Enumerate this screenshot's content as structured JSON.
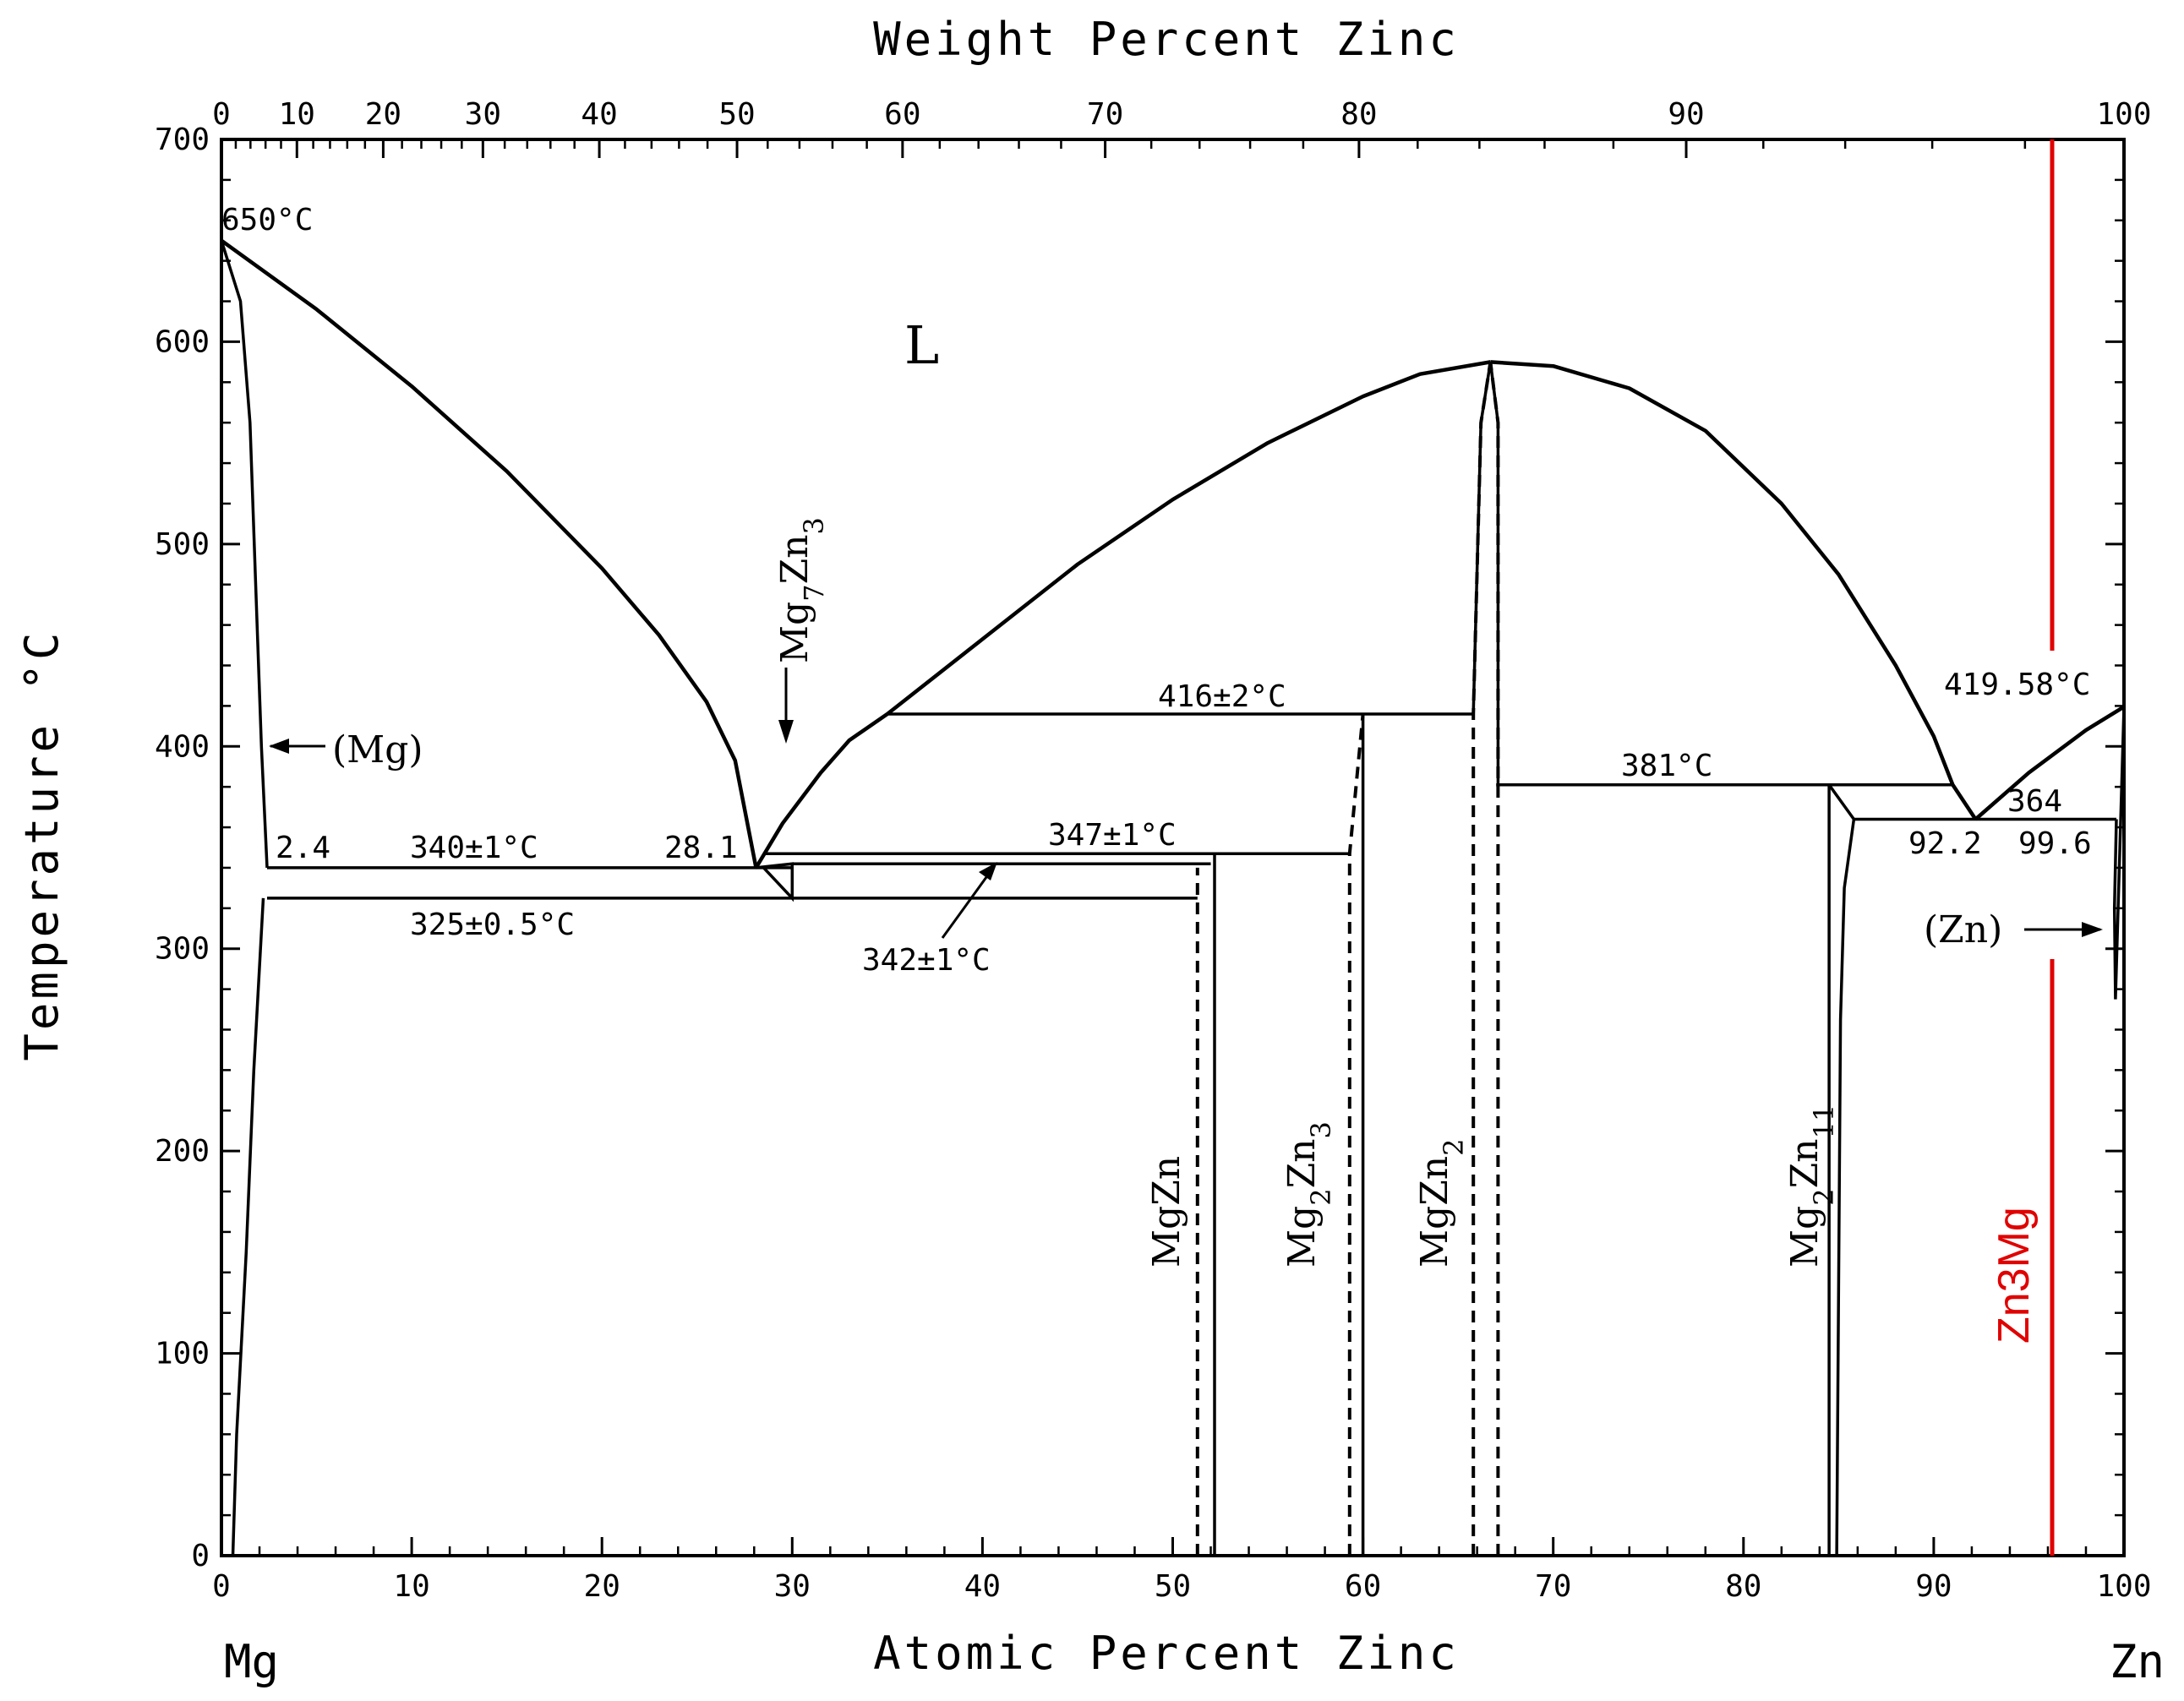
{
  "chart_data": {
    "type": "phase-diagram",
    "title": "",
    "top_axis": {
      "label": "Weight Percent Zinc",
      "ticks": [
        "0",
        "10",
        "20",
        "30",
        "40",
        "50",
        "60",
        "70",
        "80",
        "90",
        "100"
      ]
    },
    "bottom_axis": {
      "label": "Atomic Percent Zinc",
      "ticks": [
        "0",
        "10",
        "20",
        "30",
        "40",
        "50",
        "60",
        "70",
        "80",
        "90",
        "100"
      ],
      "xlim": [
        0,
        100
      ]
    },
    "y_axis": {
      "label": "Temperature °C",
      "ticks": [
        "0",
        "100",
        "200",
        "300",
        "400",
        "500",
        "600",
        "700"
      ],
      "ylim": [
        0,
        700
      ]
    },
    "elements": {
      "left": "Mg",
      "right": "Zn"
    },
    "temperature_labels": [
      {
        "text": "650°C",
        "x": 0,
        "y": 650
      },
      {
        "text": "416±2°C",
        "x": 56,
        "y": 416
      },
      {
        "text": "419.58°C",
        "x": 100,
        "y": 419.58
      },
      {
        "text": "381°C",
        "x": 76,
        "y": 381
      },
      {
        "text": "364",
        "x": 96,
        "y": 364
      },
      {
        "text": "347±1°C",
        "x": 47,
        "y": 347
      },
      {
        "text": "340±1°C",
        "x": 14,
        "y": 340
      },
      {
        "text": "325±0.5°C",
        "x": 14,
        "y": 325
      },
      {
        "text": "342±1°C",
        "x": 38,
        "y": 300
      }
    ],
    "composition_labels": [
      {
        "text": "2.4",
        "x": 2.4,
        "y": 340
      },
      {
        "text": "28.1",
        "x": 28.1,
        "y": 340
      },
      {
        "text": "92.2",
        "x": 92.2,
        "y": 364
      },
      {
        "text": "99.6",
        "x": 99.6,
        "y": 364
      }
    ],
    "phase_labels": {
      "liquid": "L",
      "mg_solution": "(Mg)",
      "zn_solution": "(Zn)",
      "mg7zn3": {
        "base": "Mg",
        "s1": "7",
        "mid": "Zn",
        "s2": "3"
      },
      "mgzn": {
        "base": "MgZn",
        "s1": "",
        "mid": "",
        "s2": ""
      },
      "mg2zn3": {
        "base": "Mg",
        "s1": "2",
        "mid": "Zn",
        "s2": "3"
      },
      "mgzn2": {
        "base": "MgZn",
        "s1": "2",
        "mid": "",
        "s2": ""
      },
      "mg2zn11": {
        "base": "Mg",
        "s1": "2",
        "mid": "Zn",
        "s2": "11"
      }
    },
    "highlight": {
      "label": "Zn3Mg",
      "x": 97,
      "color": "#e00000"
    },
    "lines": {
      "liquidus_mg_side": [
        [
          0,
          650
        ],
        [
          5,
          616
        ],
        [
          10,
          578
        ],
        [
          15,
          536
        ],
        [
          20,
          488
        ],
        [
          23,
          455
        ],
        [
          25.5,
          422
        ],
        [
          27,
          393
        ],
        [
          28.1,
          340
        ]
      ],
      "liquidus_mg7zn3": [
        [
          28.1,
          340
        ],
        [
          29.5,
          362
        ],
        [
          31.5,
          387
        ],
        [
          33,
          403
        ],
        [
          35,
          416
        ]
      ],
      "liquidus_mgzn2_left": [
        [
          35,
          416
        ],
        [
          40,
          453
        ],
        [
          45,
          490
        ],
        [
          50,
          522
        ],
        [
          55,
          550
        ],
        [
          60,
          573
        ],
        [
          63,
          584
        ],
        [
          66.7,
          590
        ]
      ],
      "liquidus_mgzn2_right": [
        [
          66.7,
          590
        ],
        [
          70,
          588
        ],
        [
          74,
          577
        ],
        [
          78,
          556
        ],
        [
          82,
          520
        ],
        [
          85,
          485
        ],
        [
          88,
          440
        ],
        [
          90,
          405
        ],
        [
          91,
          381
        ],
        [
          92.2,
          364
        ]
      ],
      "liquidus_zn_side": [
        [
          92.2,
          364
        ],
        [
          95,
          387
        ],
        [
          98,
          408
        ],
        [
          100,
          419.58
        ]
      ],
      "solidus_mg": [
        [
          0,
          650
        ],
        [
          1,
          620
        ],
        [
          1.5,
          560
        ],
        [
          1.8,
          480
        ],
        [
          2.1,
          400
        ],
        [
          2.4,
          340
        ]
      ],
      "solvus_mg": [
        [
          0.6,
          0
        ],
        [
          0.8,
          60
        ],
        [
          1.3,
          150
        ],
        [
          1.7,
          240
        ],
        [
          2.2,
          325
        ]
      ],
      "eutectic_340": [
        [
          2.4,
          340
        ],
        [
          28.1,
          340
        ],
        [
          30,
          340
        ]
      ],
      "eutectoid_325": [
        [
          2.4,
          325
        ],
        [
          30,
          325
        ],
        [
          51.3,
          325
        ]
      ],
      "peritectic_347": [
        [
          28.5,
          347
        ],
        [
          59.3,
          347
        ]
      ],
      "peritectic_342": [
        [
          30,
          342
        ],
        [
          52,
          342
        ]
      ],
      "peritectic_416": [
        [
          35,
          416
        ],
        [
          65.8,
          416
        ]
      ],
      "eutectic_381": [
        [
          67,
          381
        ],
        [
          91,
          381
        ]
      ],
      "eutectic_364": [
        [
          85.8,
          364
        ],
        [
          99.6,
          364
        ]
      ],
      "mg7zn3_triangle": [
        [
          28.1,
          340
        ],
        [
          30,
          342
        ],
        [
          30,
          325
        ],
        [
          28.5,
          340
        ]
      ],
      "mgzn_solid": [
        [
          52.2,
          0
        ],
        [
          52.2,
          347
        ]
      ],
      "mgzn_dashed": [
        [
          51.3,
          0
        ],
        [
          51.3,
          340
        ]
      ],
      "mg2zn3_solid": [
        [
          60,
          0
        ],
        [
          60,
          416
        ]
      ],
      "mg2zn3_dashed": [
        [
          59.3,
          0
        ],
        [
          59.3,
          347
        ],
        [
          60,
          416
        ]
      ],
      "mgzn2_left": [
        [
          65.8,
          0
        ],
        [
          65.8,
          416
        ],
        [
          66.2,
          560
        ],
        [
          66.7,
          590
        ]
      ],
      "mgzn2_right": [
        [
          67.1,
          0
        ],
        [
          67.1,
          381
        ],
        [
          67.1,
          560
        ],
        [
          66.7,
          590
        ]
      ],
      "mg2zn11_left": [
        [
          84.5,
          0
        ],
        [
          84.5,
          381
        ]
      ],
      "mg2zn11_right": [
        [
          84.9,
          0
        ],
        [
          85.1,
          265
        ],
        [
          85.3,
          330
        ],
        [
          85.8,
          364
        ],
        [
          84.5,
          381
        ]
      ],
      "zn_solvus": [
        [
          99.6,
          364
        ],
        [
          99.5,
          320
        ],
        [
          99.55,
          275
        ],
        [
          100,
          419.58
        ]
      ]
    }
  }
}
